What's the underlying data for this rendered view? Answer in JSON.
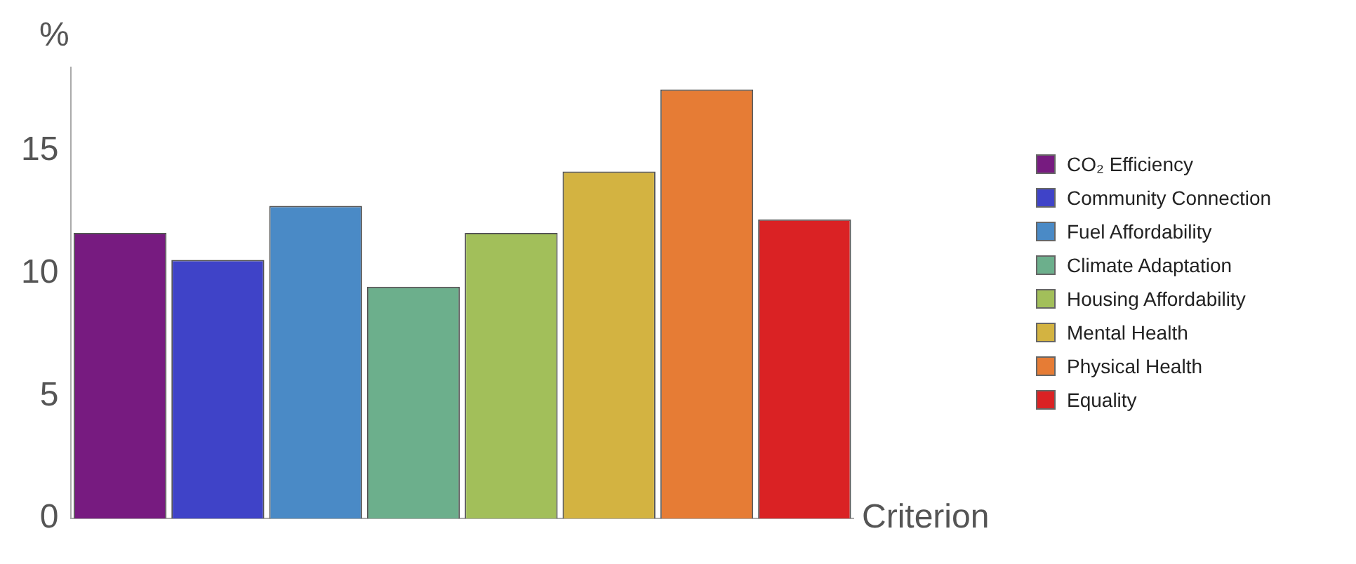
{
  "chart_data": {
    "type": "bar",
    "xlabel": "Criterion",
    "ylabel": "%",
    "categories": [
      null,
      null,
      null,
      null,
      null,
      null,
      null,
      null
    ],
    "series": [
      {
        "name": "CO₂ Efficiency",
        "color": "#771b80",
        "values": [
          11.65,
          null,
          null,
          null,
          null,
          null,
          null,
          null
        ]
      },
      {
        "name": "Community Connection",
        "color": "#3f43c8",
        "values": [
          null,
          10.55,
          null,
          null,
          null,
          null,
          null,
          null
        ]
      },
      {
        "name": "Fuel Affordability",
        "color": "#4a8ac6",
        "values": [
          null,
          null,
          12.75,
          null,
          null,
          null,
          null,
          null
        ]
      },
      {
        "name": "Climate Adaptation",
        "color": "#6caf8c",
        "values": [
          null,
          null,
          null,
          9.45,
          null,
          null,
          null,
          null
        ]
      },
      {
        "name": "Housing Affordability",
        "color": "#a2bf5a",
        "values": [
          null,
          null,
          null,
          null,
          11.65,
          null,
          null,
          null
        ]
      },
      {
        "name": "Mental Health",
        "color": "#d3b341",
        "values": [
          null,
          null,
          null,
          null,
          null,
          14.15,
          null,
          null
        ]
      },
      {
        "name": "Physical Health",
        "color": "#e67c35",
        "values": [
          null,
          null,
          null,
          null,
          null,
          null,
          17.5,
          null
        ]
      },
      {
        "name": "Equality",
        "color": "#da2224",
        "values": [
          null,
          null,
          null,
          null,
          null,
          null,
          null,
          12.2
        ]
      }
    ],
    "ylim": [
      0,
      18.4
    ],
    "yticks": [
      0,
      5,
      10,
      15
    ],
    "grid": false,
    "legend": "right"
  }
}
